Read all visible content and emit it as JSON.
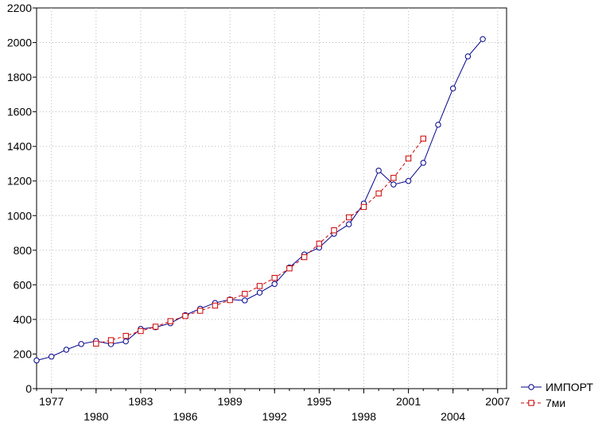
{
  "chart_data": {
    "type": "line",
    "title": "",
    "xlabel": "",
    "ylabel": "",
    "ylim": [
      0,
      2200
    ],
    "xlim": [
      1976,
      2007.6
    ],
    "grid": true,
    "legend_position": "bottom-right",
    "y_ticks": [
      "0",
      "200",
      "400",
      "600",
      "800",
      "1000",
      "1200",
      "1400",
      "1600",
      "1800",
      "2000",
      "2200"
    ],
    "x_ticks_top": [
      "1977",
      "1983",
      "1989",
      "1995",
      "2001",
      "2007"
    ],
    "x_ticks_bottom": [
      "1980",
      "1986",
      "1992",
      "1998",
      "2004"
    ],
    "series": [
      {
        "name": "ИМПОРТ",
        "color": "#00008b",
        "marker": "circle",
        "line": "solid",
        "x": [
          1976,
          1977,
          1978,
          1979,
          1980,
          1981,
          1982,
          1983,
          1984,
          1985,
          1986,
          1987,
          1988,
          1989,
          1990,
          1991,
          1992,
          1993,
          1994,
          1995,
          1996,
          1997,
          1998,
          1999,
          2000,
          2001,
          2002,
          2003,
          2004,
          2005,
          2006
        ],
        "values": [
          163,
          185,
          225,
          258,
          275,
          257,
          273,
          345,
          355,
          378,
          425,
          462,
          495,
          515,
          510,
          555,
          605,
          700,
          775,
          815,
          895,
          950,
          1070,
          1260,
          1180,
          1200,
          1305,
          1525,
          1735,
          1920,
          2020
        ]
      },
      {
        "name": "7ми",
        "color": "#cc0000",
        "marker": "square",
        "line": "dashed",
        "x": [
          1980,
          1981,
          1982,
          1983,
          1984,
          1985,
          1986,
          1987,
          1988,
          1989,
          1990,
          1991,
          1992,
          1993,
          1994,
          1995,
          1996,
          1997,
          1998,
          1999,
          2000,
          2001,
          2002
        ],
        "values": [
          260,
          280,
          305,
          333,
          358,
          390,
          420,
          450,
          480,
          512,
          548,
          593,
          640,
          695,
          760,
          838,
          915,
          990,
          1050,
          1128,
          1218,
          1330,
          1445
        ]
      }
    ]
  }
}
